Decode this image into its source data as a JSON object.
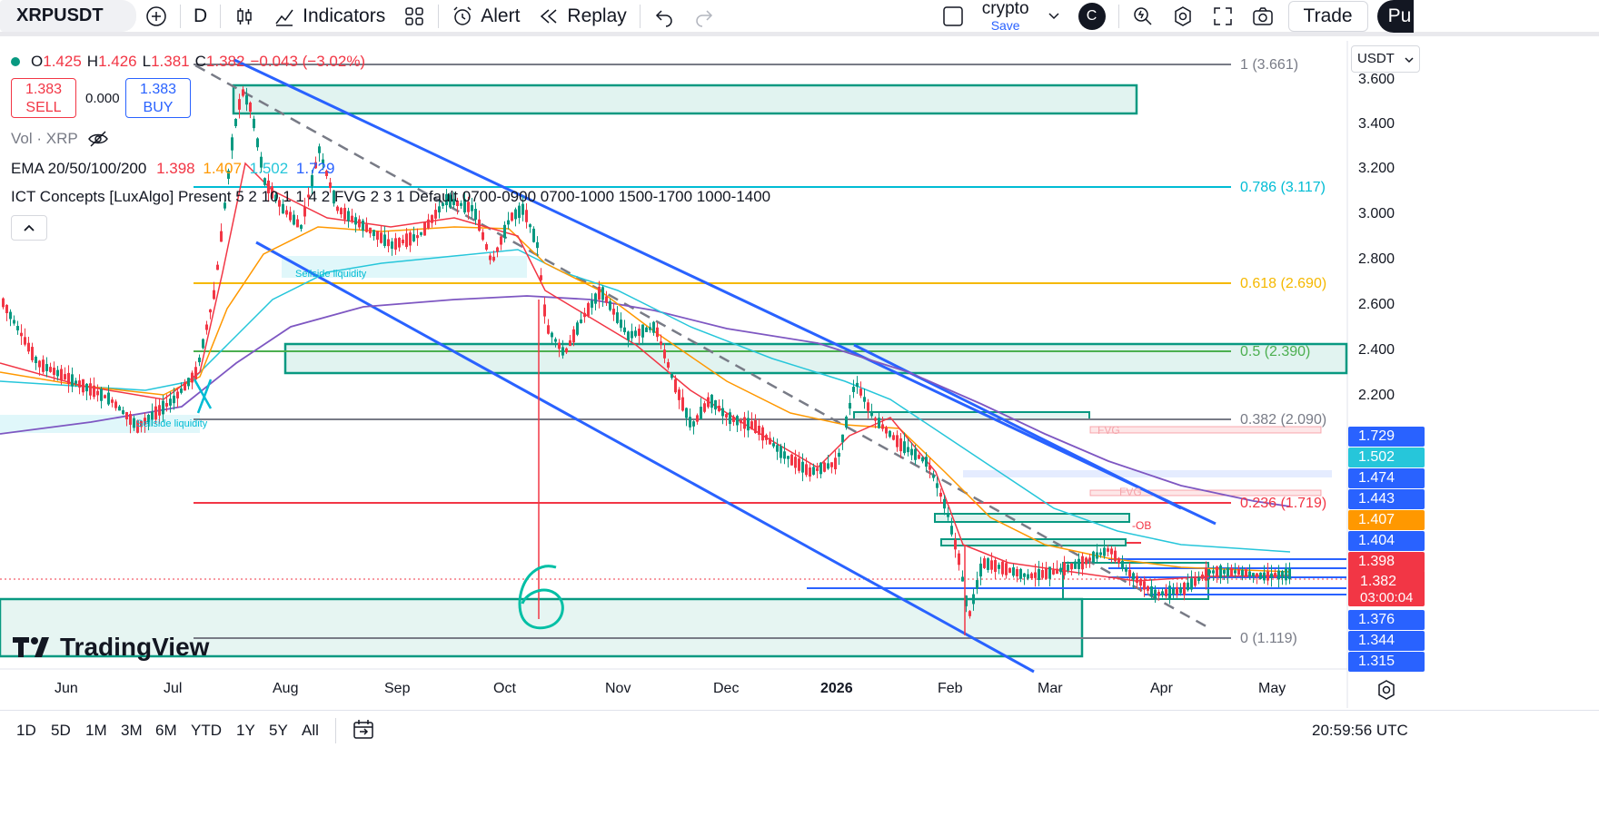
{
  "toolbar": {
    "symbol": "XRPUSDT",
    "interval": "D",
    "indicators_label": "Indicators",
    "alert_label": "Alert",
    "replay_label": "Replay",
    "layout_name": "crypto",
    "save_label": "Save",
    "avatar_letter": "C",
    "trade_label": "Trade",
    "publish_label": "Pu"
  },
  "legend": {
    "open_label": "O",
    "open": "1.425",
    "high_label": "H",
    "high": "1.426",
    "low_label": "L",
    "low": "1.381",
    "close_label": "C",
    "close": "1.382",
    "change": "−0.043 (−3.02%)",
    "sell_price": "1.383",
    "sell_label": "SELL",
    "spread": "0.000",
    "buy_price": "1.383",
    "buy_label": "BUY",
    "volume_label": "Vol · XRP",
    "ema_label": "EMA 20/50/100/200",
    "ema_values": [
      "1.398",
      "1.407",
      "1.502",
      "1.729"
    ],
    "ict_label": "ICT Concepts [LuxAlgo] Present 5 2 10 1 1 4 2 FVG 2 3 1 Default 0700-0900 0700-1000 1500-1700 1000-1400"
  },
  "fib_levels": [
    {
      "label": "1 (3.661)",
      "color": "#787b86"
    },
    {
      "label": "0.786 (3.117)",
      "color": "#00bcd4"
    },
    {
      "label": "0.618 (2.690)",
      "color": "#f5b800"
    },
    {
      "label": "0.5 (2.390)",
      "color": "#4caf50"
    },
    {
      "label": "0.382 (2.090)",
      "color": "#787b86"
    },
    {
      "label": "0.236 (1.719)",
      "color": "#f23645"
    },
    {
      "label": "0 (1.119)",
      "color": "#787b86"
    }
  ],
  "chart_annotations": {
    "sellside_1": "Sellside liquidity",
    "sellside_2": "Sellside liquidity",
    "fvg_1": "FVG",
    "fvg_2": "FVG",
    "ob": "-OB",
    "hand_number": "6",
    "watermark": "TradingView"
  },
  "price_axis": {
    "currency": "USDT",
    "ticks": [
      "3.600",
      "3.400",
      "3.200",
      "3.000",
      "2.800",
      "2.600",
      "2.400",
      "2.200"
    ],
    "labels": [
      {
        "value": "1.729",
        "color": "#2962ff"
      },
      {
        "value": "1.502",
        "color": "#26c6da"
      },
      {
        "value": "1.474",
        "color": "#2962ff"
      },
      {
        "value": "1.443",
        "color": "#2962ff"
      },
      {
        "value": "1.407",
        "color": "#ff9800"
      },
      {
        "value": "1.404",
        "color": "#2962ff"
      },
      {
        "value": "1.398",
        "color": "#f23645"
      },
      {
        "value": "1.382",
        "color": "#f23645"
      },
      {
        "value": "1.376",
        "color": "#2962ff"
      },
      {
        "value": "1.344",
        "color": "#2962ff"
      },
      {
        "value": "1.315",
        "color": "#2962ff"
      }
    ],
    "countdown": "03:00:04"
  },
  "time_axis": [
    "Jun",
    "Jul",
    "Aug",
    "Sep",
    "Oct",
    "Nov",
    "Dec",
    "2026",
    "Feb",
    "Mar",
    "Apr",
    "May"
  ],
  "ranges": [
    "1D",
    "5D",
    "1M",
    "3M",
    "6M",
    "YTD",
    "1Y",
    "5Y",
    "All"
  ],
  "clock": "20:59:56 UTC"
}
